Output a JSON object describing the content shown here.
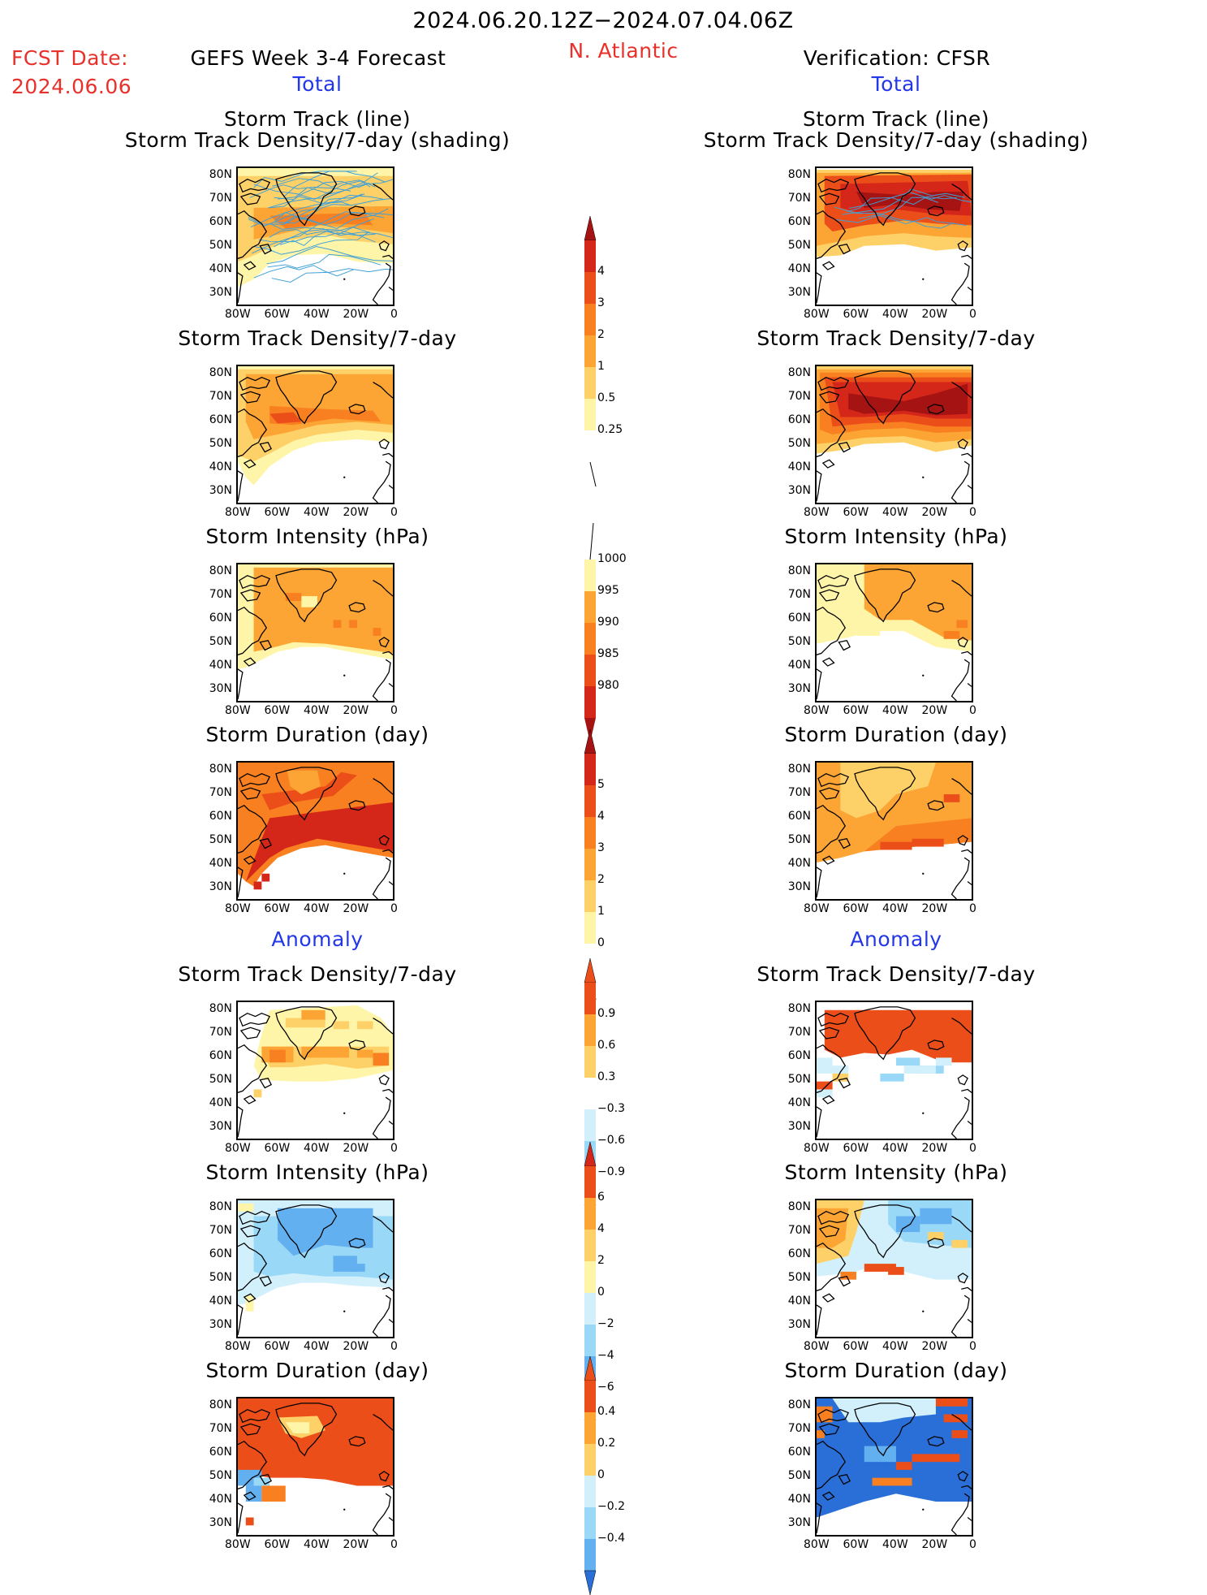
{
  "header": {
    "period": "2024.06.20.12Z−2024.07.04.06Z",
    "fcst_label": "FCST Date:",
    "fcst_date": "2024.06.06",
    "left_title": "GEFS Week 3-4 Forecast",
    "region": "N. Atlantic",
    "right_title": "Verification: CFSR",
    "total_label": "Total",
    "anomaly_label": "Anomaly"
  },
  "panel_titles": {
    "track_line": "Storm Track (line)",
    "track_shading": "Storm Track Density/7-day (shading)",
    "density": "Storm Track Density/7-day",
    "intensity": "Storm Intensity (hPa)",
    "duration": "Storm Duration (day)"
  },
  "axes": {
    "lat": [
      "80N",
      "70N",
      "60N",
      "50N",
      "40N",
      "30N"
    ],
    "lon": [
      "80W",
      "60W",
      "40W",
      "20W",
      "0"
    ]
  },
  "colorbars": {
    "density": [
      "4",
      "3",
      "2",
      "1",
      "0.5",
      "0.25"
    ],
    "intensity": [
      "1000",
      "995",
      "990",
      "985",
      "980"
    ],
    "duration": [
      "5",
      "4",
      "3",
      "2",
      "1",
      "0"
    ],
    "density_anom": [
      "0.9",
      "0.6",
      "0.3",
      "−0.3",
      "−0.6",
      "−0.9"
    ],
    "intensity_anom": [
      "6",
      "4",
      "2",
      "0",
      "−2",
      "−4",
      "−6"
    ],
    "duration_anom": [
      "0.4",
      "0.2",
      "0",
      "−0.2",
      "−0.4"
    ]
  },
  "colors": {
    "y1": "#fff5a8",
    "y2": "#fed168",
    "o1": "#fca534",
    "o2": "#f88020",
    "r1": "#ec4e1a",
    "r2": "#d4271a",
    "dr": "#a51313",
    "b1": "#d2f0fb",
    "b2": "#9ad8f8",
    "b3": "#63b0f0",
    "b4": "#2a6fd8",
    "b5": "#1f4fbe",
    "track": "#3fa0d8"
  }
}
